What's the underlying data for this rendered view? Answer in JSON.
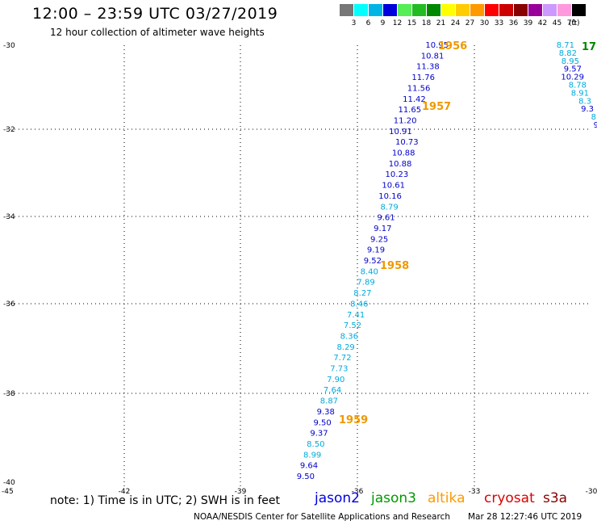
{
  "header": {
    "title": "12:00 – 23:59 UTC 03/27/2019",
    "subtitle": "12 hour collection of altimeter wave heights"
  },
  "legend": {
    "unit": "(ft)",
    "bins": [
      {
        "label": "3",
        "color": "#777777"
      },
      {
        "label": "6",
        "color": "#00ffff"
      },
      {
        "label": "9",
        "color": "#00b4e6"
      },
      {
        "label": "12",
        "color": "#0000dd"
      },
      {
        "label": "15",
        "color": "#55ee55"
      },
      {
        "label": "18",
        "color": "#22bb22"
      },
      {
        "label": "21",
        "color": "#008800"
      },
      {
        "label": "24",
        "color": "#ffff00"
      },
      {
        "label": "27",
        "color": "#ffcc00"
      },
      {
        "label": "30",
        "color": "#ff9900"
      },
      {
        "label": "33",
        "color": "#ff0000"
      },
      {
        "label": "36",
        "color": "#cc0000"
      },
      {
        "label": "39",
        "color": "#880000"
      },
      {
        "label": "42",
        "color": "#990099"
      },
      {
        "label": "45",
        "color": "#cc99ff"
      },
      {
        "label": "70",
        "color": "#ff99dd"
      },
      {
        "label": "",
        "color": "#000000"
      }
    ]
  },
  "map": {
    "x_ticks": [
      "-45",
      "-42",
      "-39",
      "-36",
      "-33",
      "-30"
    ],
    "y_ticks": [
      "-30",
      "-32",
      "-34",
      "-36",
      "-38",
      "-40"
    ],
    "track_main": [
      {
        "v": "10.95",
        "c": "#0000cc"
      },
      {
        "v": "10.81",
        "c": "#0000cc"
      },
      {
        "v": "11.38",
        "c": "#0000cc"
      },
      {
        "v": "11.76",
        "c": "#0000cc"
      },
      {
        "v": "11.56",
        "c": "#0000cc"
      },
      {
        "v": "11.42",
        "c": "#0000cc"
      },
      {
        "v": "11.65",
        "c": "#0000cc"
      },
      {
        "v": "11.20",
        "c": "#0000cc"
      },
      {
        "v": "10.91",
        "c": "#0000cc"
      },
      {
        "v": "10.73",
        "c": "#0000cc"
      },
      {
        "v": "10.88",
        "c": "#0000cc"
      },
      {
        "v": "10.88",
        "c": "#0000cc"
      },
      {
        "v": "10.23",
        "c": "#0000cc"
      },
      {
        "v": "10.61",
        "c": "#0000cc"
      },
      {
        "v": "10.16",
        "c": "#0000cc"
      },
      {
        "v": "8.79",
        "c": "#00aadd"
      },
      {
        "v": "9.61",
        "c": "#0000cc"
      },
      {
        "v": "9.17",
        "c": "#0000cc"
      },
      {
        "v": "9.25",
        "c": "#0000cc"
      },
      {
        "v": "9.19",
        "c": "#0000cc"
      },
      {
        "v": "9.52",
        "c": "#0000cc"
      },
      {
        "v": "8.40",
        "c": "#00aadd"
      },
      {
        "v": "7.89",
        "c": "#00aadd"
      },
      {
        "v": "8.27",
        "c": "#00aadd"
      },
      {
        "v": "8.46",
        "c": "#00aadd"
      },
      {
        "v": "7.41",
        "c": "#00aadd"
      },
      {
        "v": "7.52",
        "c": "#00aadd"
      },
      {
        "v": "8.36",
        "c": "#00aadd"
      },
      {
        "v": "8.29",
        "c": "#00aadd"
      },
      {
        "v": "7.72",
        "c": "#00aadd"
      },
      {
        "v": "7.73",
        "c": "#00aadd"
      },
      {
        "v": "7.90",
        "c": "#00aadd"
      },
      {
        "v": "7.64",
        "c": "#00aadd"
      },
      {
        "v": "8.87",
        "c": "#00aadd"
      },
      {
        "v": "9.38",
        "c": "#0000cc"
      },
      {
        "v": "9.50",
        "c": "#0000cc"
      },
      {
        "v": "9.37",
        "c": "#0000cc"
      },
      {
        "v": "8.50",
        "c": "#00aadd"
      },
      {
        "v": "8.99",
        "c": "#00aadd"
      },
      {
        "v": "9.64",
        "c": "#0000cc"
      },
      {
        "v": "9.50",
        "c": "#0000cc"
      }
    ],
    "track_right": [
      {
        "v": "8.71",
        "c": "#00aadd"
      },
      {
        "v": "8.82",
        "c": "#00aadd"
      },
      {
        "v": "8.95",
        "c": "#00aadd"
      },
      {
        "v": "9.57",
        "c": "#0000cc"
      },
      {
        "v": "10.29",
        "c": "#0000cc"
      },
      {
        "v": "8.78",
        "c": "#00aadd"
      },
      {
        "v": "8.91",
        "c": "#00aadd"
      },
      {
        "v": "8.3",
        "c": "#00aadd"
      },
      {
        "v": "9.3",
        "c": "#0000cc"
      },
      {
        "v": "8",
        "c": "#00aadd"
      },
      {
        "v": "9",
        "c": "#0000cc"
      }
    ],
    "time_labels": [
      {
        "text": "1956",
        "color": "#ee9900"
      },
      {
        "text": "1957",
        "color": "#ee9900"
      },
      {
        "text": "1958",
        "color": "#ee9900"
      },
      {
        "text": "1959",
        "color": "#ee9900"
      },
      {
        "text": "17",
        "color": "#008800"
      }
    ]
  },
  "footer": {
    "note": "note:  1) Time is in UTC;  2) SWH is in feet",
    "satellites": [
      {
        "name": "jason2",
        "color": "#0000dd"
      },
      {
        "name": "jason3",
        "color": "#009900"
      },
      {
        "name": "altika",
        "color": "#ff9900"
      },
      {
        "name": "cryosat",
        "color": "#dd0000"
      },
      {
        "name": "s3a",
        "color": "#880000"
      }
    ],
    "credit": "NOAA/NESDIS Center for Satellite Applications and Research",
    "timestamp": "Mar 28 12:27:46 UTC 2019"
  }
}
